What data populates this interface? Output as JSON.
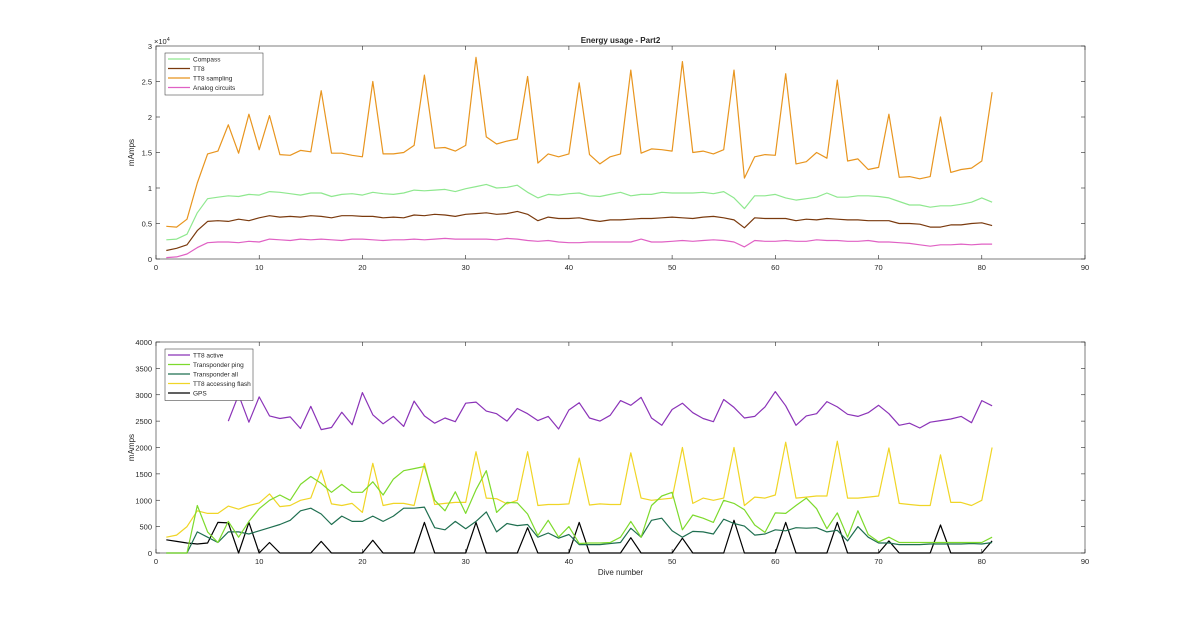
{
  "figure": {
    "background": "#ffffff"
  },
  "chart_data": [
    {
      "type": "line",
      "title": "Energy usage - Part2",
      "xlabel": "",
      "ylabel": "mAmps",
      "xlim": [
        0,
        90
      ],
      "ylim": [
        0,
        30000
      ],
      "y_exponent_label": "×10",
      "y_exponent_power": "4",
      "x_ticks": [
        0,
        10,
        20,
        30,
        40,
        50,
        60,
        70,
        80,
        90
      ],
      "x_tick_labels": [
        "0",
        "10",
        "20",
        "30",
        "40",
        "50",
        "60",
        "70",
        "80",
        "90"
      ],
      "y_ticks": [
        0,
        5000,
        10000,
        15000,
        20000,
        25000,
        30000
      ],
      "y_tick_labels": [
        "0",
        "0.5",
        "1",
        "1.5",
        "2",
        "2.5",
        "3"
      ],
      "grid": false,
      "legend_position": "top-left",
      "x": [
        1,
        2,
        3,
        4,
        5,
        6,
        7,
        8,
        9,
        10,
        11,
        12,
        13,
        14,
        15,
        16,
        17,
        18,
        19,
        20,
        21,
        22,
        23,
        24,
        25,
        26,
        27,
        28,
        29,
        30,
        31,
        32,
        33,
        34,
        35,
        36,
        37,
        38,
        39,
        40,
        41,
        42,
        43,
        44,
        45,
        46,
        47,
        48,
        49,
        50,
        51,
        52,
        53,
        54,
        55,
        56,
        57,
        58,
        59,
        60,
        61,
        62,
        63,
        64,
        65,
        66,
        67,
        68,
        69,
        70,
        71,
        72,
        73,
        74,
        75,
        76,
        77,
        78,
        79,
        80,
        81
      ],
      "series": [
        {
          "name": "Compass",
          "color": "#8fe88f",
          "values": [
            2700,
            2800,
            3500,
            6500,
            8500,
            8700,
            8900,
            8800,
            9100,
            9000,
            9500,
            9400,
            9200,
            9000,
            9300,
            9300,
            8800,
            9100,
            9200,
            9000,
            9400,
            9200,
            9100,
            9300,
            9700,
            9600,
            9700,
            9800,
            9500,
            9900,
            10200,
            10500,
            10000,
            10100,
            10400,
            9400,
            8600,
            9100,
            9000,
            9200,
            9300,
            8900,
            8800,
            9100,
            9400,
            8900,
            9100,
            9100,
            9400,
            9300,
            9300,
            9300,
            9400,
            9200,
            9500,
            8600,
            7100,
            8900,
            8900,
            9100,
            8600,
            8300,
            8500,
            8700,
            9300,
            8700,
            8700,
            8900,
            8900,
            8800,
            8600,
            8100,
            7600,
            7600,
            7300,
            7500,
            7500,
            7700,
            8000,
            8600,
            8000
          ]
        },
        {
          "name": "TT8",
          "color": "#7a3a0e",
          "values": [
            1200,
            1500,
            2000,
            4000,
            5300,
            5400,
            5300,
            5600,
            5400,
            5800,
            6100,
            5900,
            6000,
            5900,
            6100,
            6000,
            5800,
            6100,
            6100,
            6000,
            6000,
            5800,
            5900,
            5800,
            6200,
            6100,
            6300,
            6200,
            6000,
            6300,
            6400,
            6500,
            6300,
            6400,
            6700,
            6300,
            5400,
            5900,
            5700,
            5700,
            5800,
            5500,
            5300,
            5500,
            5500,
            5600,
            5700,
            5700,
            5800,
            5900,
            5800,
            5700,
            5900,
            6000,
            5800,
            5500,
            4400,
            5800,
            5700,
            5700,
            5700,
            5400,
            5600,
            5500,
            5700,
            5600,
            5500,
            5500,
            5400,
            5400,
            5400,
            5000,
            5000,
            4900,
            4500,
            4500,
            4800,
            4800,
            5000,
            5100,
            4700
          ]
        },
        {
          "name": "TT8 sampling",
          "color": "#e8951f",
          "values": [
            4600,
            4500,
            5600,
            10700,
            14800,
            15200,
            18900,
            14900,
            20400,
            15400,
            20200,
            14700,
            14600,
            15300,
            15100,
            23700,
            14900,
            14900,
            14600,
            14400,
            25000,
            14800,
            14800,
            15000,
            16000,
            25900,
            15600,
            15700,
            15200,
            16000,
            28400,
            17200,
            16200,
            16600,
            16900,
            25700,
            13500,
            14800,
            14400,
            14800,
            24800,
            14700,
            13400,
            14400,
            14800,
            26600,
            14900,
            15500,
            15400,
            15200,
            27800,
            15000,
            15200,
            14800,
            15400,
            26600,
            11400,
            14400,
            14700,
            14600,
            26100,
            13400,
            13700,
            15000,
            14200,
            25200,
            13800,
            14100,
            12600,
            12900,
            20400,
            11500,
            11600,
            11300,
            11600,
            20000,
            12200,
            12600,
            12800,
            13800,
            23500
          ]
        },
        {
          "name": "Analog circuits",
          "color": "#e061c4",
          "values": [
            200,
            300,
            700,
            1600,
            2300,
            2400,
            2400,
            2300,
            2500,
            2400,
            2800,
            2700,
            2600,
            2800,
            2700,
            2800,
            2700,
            2600,
            2800,
            2800,
            2700,
            2600,
            2700,
            2700,
            2800,
            2700,
            2800,
            2900,
            2800,
            2800,
            2800,
            2800,
            2700,
            2900,
            2800,
            2600,
            2500,
            2600,
            2400,
            2300,
            2300,
            2400,
            2400,
            2400,
            2400,
            2400,
            2800,
            2400,
            2400,
            2500,
            2600,
            2500,
            2600,
            2700,
            2600,
            2400,
            1700,
            2600,
            2500,
            2500,
            2600,
            2500,
            2500,
            2700,
            2600,
            2600,
            2500,
            2500,
            2600,
            2400,
            2400,
            2300,
            2200,
            2000,
            1800,
            2000,
            2000,
            2100,
            2000,
            2100,
            2100
          ]
        }
      ]
    },
    {
      "type": "line",
      "title": "",
      "xlabel": "Dive number",
      "ylabel": "mAmps",
      "xlim": [
        0,
        90
      ],
      "ylim": [
        0,
        4000
      ],
      "x_ticks": [
        0,
        10,
        20,
        30,
        40,
        50,
        60,
        70,
        80,
        90
      ],
      "x_tick_labels": [
        "0",
        "10",
        "20",
        "30",
        "40",
        "50",
        "60",
        "70",
        "80",
        "90"
      ],
      "y_ticks": [
        0,
        500,
        1000,
        1500,
        2000,
        2500,
        3000,
        3500,
        4000
      ],
      "y_tick_labels": [
        "0",
        "500",
        "1000",
        "1500",
        "2000",
        "2500",
        "3000",
        "3500",
        "4000"
      ],
      "grid": false,
      "legend_position": "top-left",
      "x": [
        1,
        2,
        3,
        4,
        5,
        6,
        7,
        8,
        9,
        10,
        11,
        12,
        13,
        14,
        15,
        16,
        17,
        18,
        19,
        20,
        21,
        22,
        23,
        24,
        25,
        26,
        27,
        28,
        29,
        30,
        31,
        32,
        33,
        34,
        35,
        36,
        37,
        38,
        39,
        40,
        41,
        42,
        43,
        44,
        45,
        46,
        47,
        48,
        49,
        50,
        51,
        52,
        53,
        54,
        55,
        56,
        57,
        58,
        59,
        60,
        61,
        62,
        63,
        64,
        65,
        66,
        67,
        68,
        69,
        70,
        71,
        72,
        73,
        74,
        75,
        76,
        77,
        78,
        79,
        80,
        81
      ],
      "series": [
        {
          "name": "TT8 active",
          "color": "#8b33b8",
          "values": [
            null,
            null,
            null,
            null,
            null,
            null,
            2500,
            3000,
            2480,
            2960,
            2600,
            2550,
            2580,
            2360,
            2780,
            2340,
            2380,
            2670,
            2430,
            3040,
            2620,
            2450,
            2590,
            2400,
            2880,
            2600,
            2460,
            2560,
            2490,
            2840,
            2860,
            2690,
            2640,
            2500,
            2740,
            2640,
            2510,
            2590,
            2350,
            2710,
            2850,
            2560,
            2500,
            2610,
            2890,
            2800,
            2950,
            2560,
            2420,
            2720,
            2840,
            2660,
            2550,
            2490,
            2910,
            2760,
            2560,
            2590,
            2770,
            3060,
            2790,
            2420,
            2600,
            2640,
            2870,
            2770,
            2630,
            2590,
            2660,
            2800,
            2640,
            2420,
            2460,
            2370,
            2480,
            2510,
            2540,
            2590,
            2470,
            2890,
            2790
          ]
        },
        {
          "name": "Transponder ping",
          "color": "#7dda2c",
          "values": [
            0,
            0,
            0,
            900,
            400,
            200,
            600,
            300,
            600,
            840,
            1000,
            1100,
            1000,
            1300,
            1450,
            1320,
            1150,
            1300,
            1150,
            1150,
            1350,
            1100,
            1400,
            1560,
            1600,
            1640,
            1000,
            800,
            1160,
            750,
            1200,
            1560,
            770,
            960,
            950,
            740,
            330,
            620,
            300,
            500,
            180,
            190,
            190,
            200,
            300,
            600,
            300,
            900,
            1080,
            1150,
            440,
            720,
            660,
            580,
            1000,
            940,
            820,
            530,
            390,
            760,
            750,
            900,
            1040,
            840,
            460,
            760,
            300,
            800,
            350,
            210,
            300,
            200,
            200,
            200,
            200,
            200,
            200,
            200,
            200,
            200,
            300
          ]
        },
        {
          "name": "Transponder all",
          "color": "#1f6f50",
          "values": [
            0,
            0,
            0,
            400,
            300,
            200,
            400,
            400,
            360,
            420,
            480,
            540,
            620,
            800,
            850,
            740,
            540,
            700,
            600,
            600,
            700,
            600,
            700,
            850,
            850,
            870,
            480,
            440,
            600,
            460,
            600,
            780,
            400,
            560,
            520,
            540,
            300,
            380,
            280,
            350,
            160,
            160,
            160,
            180,
            200,
            470,
            300,
            620,
            660,
            420,
            300,
            410,
            400,
            360,
            640,
            560,
            510,
            340,
            360,
            440,
            420,
            480,
            470,
            480,
            400,
            430,
            230,
            500,
            300,
            190,
            190,
            160,
            160,
            160,
            170,
            170,
            170,
            170,
            180,
            170,
            200
          ]
        },
        {
          "name": "TT8 accessing flash",
          "color": "#f0d526",
          "values": [
            300,
            340,
            500,
            800,
            750,
            750,
            890,
            830,
            900,
            950,
            1120,
            880,
            900,
            1000,
            1040,
            1570,
            930,
            900,
            940,
            770,
            1700,
            900,
            940,
            940,
            900,
            1700,
            920,
            940,
            960,
            960,
            1920,
            1040,
            1030,
            930,
            1000,
            1920,
            900,
            920,
            920,
            930,
            1800,
            910,
            930,
            920,
            920,
            1900,
            1040,
            1000,
            1020,
            1040,
            2000,
            940,
            1040,
            1000,
            1040,
            2000,
            900,
            1060,
            1040,
            1100,
            2100,
            1040,
            1060,
            1080,
            1080,
            2120,
            1040,
            1040,
            1060,
            1080,
            1990,
            940,
            920,
            900,
            900,
            1860,
            960,
            960,
            900,
            1000,
            2000
          ]
        },
        {
          "name": "GPS",
          "color": "#000000",
          "values": [
            250,
            220,
            190,
            170,
            190,
            580,
            570,
            0,
            580,
            0,
            200,
            0,
            0,
            0,
            0,
            220,
            0,
            0,
            0,
            0,
            240,
            0,
            0,
            0,
            0,
            580,
            0,
            0,
            0,
            0,
            580,
            0,
            0,
            0,
            0,
            480,
            0,
            0,
            0,
            0,
            580,
            0,
            0,
            0,
            0,
            290,
            0,
            0,
            0,
            0,
            280,
            0,
            0,
            0,
            0,
            620,
            0,
            0,
            0,
            0,
            580,
            0,
            0,
            0,
            0,
            580,
            0,
            0,
            0,
            0,
            230,
            0,
            0,
            0,
            0,
            530,
            0,
            0,
            0,
            0,
            230
          ]
        }
      ]
    }
  ]
}
